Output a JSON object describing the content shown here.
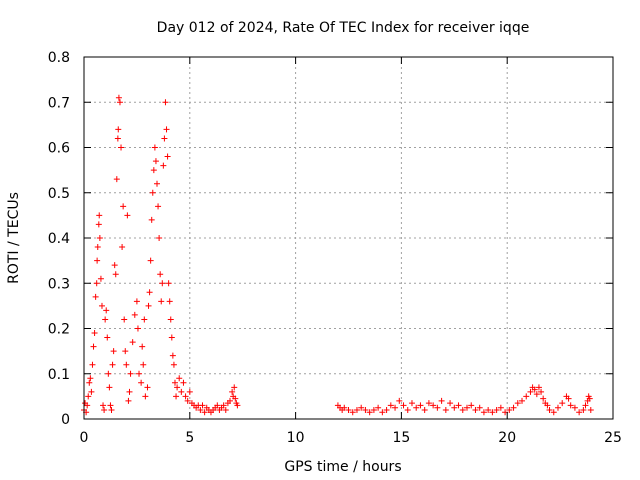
{
  "chart_data": {
    "type": "scatter",
    "title": "Day 012 of 2024, Rate Of TEC Index for receiver iqqe",
    "xlabel": "GPS time / hours",
    "ylabel": "ROTI / TECUs",
    "xlim": [
      0,
      25
    ],
    "ylim": [
      0,
      0.8
    ],
    "x_ticks": [
      0,
      5,
      10,
      15,
      20,
      25
    ],
    "y_ticks": [
      0,
      0.1,
      0.2,
      0.3,
      0.4,
      0.5,
      0.6,
      0.7,
      0.8
    ],
    "x_tick_labels": [
      "0",
      "5",
      "10",
      "15",
      "20",
      "25"
    ],
    "y_tick_labels": [
      "0",
      "0.1",
      "0.2",
      "0.3",
      "0.4",
      "0.5",
      "0.6",
      "0.7",
      "0.8"
    ],
    "grid": true,
    "marker": "+",
    "color": "#ff0000",
    "series": [
      {
        "points": [
          [
            0.0,
            0.02
          ],
          [
            0.05,
            0.035
          ],
          [
            0.1,
            0.015
          ],
          [
            0.15,
            0.03
          ],
          [
            0.2,
            0.05
          ],
          [
            0.25,
            0.08
          ],
          [
            0.3,
            0.09
          ],
          [
            0.35,
            0.06
          ],
          [
            0.4,
            0.12
          ],
          [
            0.45,
            0.16
          ],
          [
            0.5,
            0.19
          ],
          [
            0.55,
            0.27
          ],
          [
            0.6,
            0.3
          ],
          [
            0.62,
            0.35
          ],
          [
            0.65,
            0.38
          ],
          [
            0.7,
            0.43
          ],
          [
            0.72,
            0.45
          ],
          [
            0.75,
            0.4
          ],
          [
            0.8,
            0.31
          ],
          [
            0.85,
            0.25
          ],
          [
            0.9,
            0.03
          ],
          [
            0.95,
            0.02
          ],
          [
            1.0,
            0.22
          ],
          [
            1.05,
            0.24
          ],
          [
            1.1,
            0.18
          ],
          [
            1.15,
            0.1
          ],
          [
            1.2,
            0.07
          ],
          [
            1.25,
            0.03
          ],
          [
            1.3,
            0.02
          ],
          [
            1.35,
            0.12
          ],
          [
            1.4,
            0.15
          ],
          [
            1.45,
            0.34
          ],
          [
            1.5,
            0.32
          ],
          [
            1.55,
            0.53
          ],
          [
            1.6,
            0.62
          ],
          [
            1.62,
            0.64
          ],
          [
            1.65,
            0.71
          ],
          [
            1.7,
            0.7
          ],
          [
            1.75,
            0.6
          ],
          [
            1.8,
            0.38
          ],
          [
            1.85,
            0.47
          ],
          [
            1.9,
            0.22
          ],
          [
            1.95,
            0.15
          ],
          [
            2.0,
            0.12
          ],
          [
            2.05,
            0.45
          ],
          [
            2.1,
            0.04
          ],
          [
            2.15,
            0.06
          ],
          [
            2.2,
            0.1
          ],
          [
            2.3,
            0.17
          ],
          [
            2.4,
            0.23
          ],
          [
            2.5,
            0.26
          ],
          [
            2.55,
            0.2
          ],
          [
            2.6,
            0.1
          ],
          [
            2.7,
            0.08
          ],
          [
            2.75,
            0.16
          ],
          [
            2.8,
            0.12
          ],
          [
            2.85,
            0.22
          ],
          [
            2.9,
            0.05
          ],
          [
            3.0,
            0.07
          ],
          [
            3.05,
            0.25
          ],
          [
            3.1,
            0.28
          ],
          [
            3.15,
            0.35
          ],
          [
            3.2,
            0.44
          ],
          [
            3.25,
            0.5
          ],
          [
            3.3,
            0.55
          ],
          [
            3.35,
            0.6
          ],
          [
            3.4,
            0.57
          ],
          [
            3.45,
            0.52
          ],
          [
            3.5,
            0.47
          ],
          [
            3.55,
            0.4
          ],
          [
            3.6,
            0.32
          ],
          [
            3.65,
            0.26
          ],
          [
            3.7,
            0.3
          ],
          [
            3.75,
            0.56
          ],
          [
            3.8,
            0.62
          ],
          [
            3.85,
            0.7
          ],
          [
            3.9,
            0.64
          ],
          [
            3.95,
            0.58
          ],
          [
            4.0,
            0.3
          ],
          [
            4.05,
            0.26
          ],
          [
            4.1,
            0.22
          ],
          [
            4.15,
            0.18
          ],
          [
            4.2,
            0.14
          ],
          [
            4.25,
            0.12
          ],
          [
            4.3,
            0.08
          ],
          [
            4.35,
            0.05
          ],
          [
            4.4,
            0.07
          ],
          [
            4.5,
            0.09
          ],
          [
            4.6,
            0.06
          ],
          [
            4.7,
            0.08
          ],
          [
            4.8,
            0.05
          ],
          [
            4.9,
            0.04
          ],
          [
            5.0,
            0.06
          ],
          [
            5.1,
            0.035
          ],
          [
            5.2,
            0.03
          ],
          [
            5.3,
            0.025
          ],
          [
            5.4,
            0.03
          ],
          [
            5.5,
            0.02
          ],
          [
            5.6,
            0.03
          ],
          [
            5.7,
            0.015
          ],
          [
            5.8,
            0.025
          ],
          [
            5.9,
            0.02
          ],
          [
            6.0,
            0.015
          ],
          [
            6.1,
            0.02
          ],
          [
            6.2,
            0.025
          ],
          [
            6.3,
            0.03
          ],
          [
            6.4,
            0.02
          ],
          [
            6.5,
            0.025
          ],
          [
            6.6,
            0.03
          ],
          [
            6.7,
            0.02
          ],
          [
            6.8,
            0.035
          ],
          [
            6.9,
            0.04
          ],
          [
            7.0,
            0.06
          ],
          [
            7.05,
            0.05
          ],
          [
            7.1,
            0.07
          ],
          [
            7.15,
            0.045
          ],
          [
            7.2,
            0.035
          ],
          [
            7.25,
            0.03
          ],
          [
            12.0,
            0.03
          ],
          [
            12.1,
            0.025
          ],
          [
            12.2,
            0.02
          ],
          [
            12.3,
            0.025
          ],
          [
            12.5,
            0.02
          ],
          [
            12.7,
            0.015
          ],
          [
            12.9,
            0.02
          ],
          [
            13.1,
            0.025
          ],
          [
            13.3,
            0.02
          ],
          [
            13.5,
            0.015
          ],
          [
            13.7,
            0.02
          ],
          [
            13.9,
            0.025
          ],
          [
            14.1,
            0.015
          ],
          [
            14.3,
            0.02
          ],
          [
            14.5,
            0.03
          ],
          [
            14.7,
            0.025
          ],
          [
            14.9,
            0.04
          ],
          [
            15.1,
            0.03
          ],
          [
            15.3,
            0.02
          ],
          [
            15.5,
            0.035
          ],
          [
            15.7,
            0.025
          ],
          [
            15.9,
            0.03
          ],
          [
            16.1,
            0.02
          ],
          [
            16.3,
            0.035
          ],
          [
            16.5,
            0.03
          ],
          [
            16.7,
            0.025
          ],
          [
            16.9,
            0.04
          ],
          [
            17.1,
            0.02
          ],
          [
            17.3,
            0.035
          ],
          [
            17.5,
            0.025
          ],
          [
            17.7,
            0.03
          ],
          [
            17.9,
            0.02
          ],
          [
            18.1,
            0.025
          ],
          [
            18.3,
            0.03
          ],
          [
            18.5,
            0.02
          ],
          [
            18.7,
            0.025
          ],
          [
            18.9,
            0.015
          ],
          [
            19.1,
            0.02
          ],
          [
            19.3,
            0.015
          ],
          [
            19.5,
            0.02
          ],
          [
            19.7,
            0.025
          ],
          [
            19.9,
            0.015
          ],
          [
            20.1,
            0.02
          ],
          [
            20.3,
            0.025
          ],
          [
            20.5,
            0.035
          ],
          [
            20.7,
            0.04
          ],
          [
            20.9,
            0.05
          ],
          [
            21.1,
            0.06
          ],
          [
            21.2,
            0.07
          ],
          [
            21.3,
            0.065
          ],
          [
            21.4,
            0.055
          ],
          [
            21.5,
            0.07
          ],
          [
            21.6,
            0.06
          ],
          [
            21.7,
            0.045
          ],
          [
            21.8,
            0.035
          ],
          [
            21.9,
            0.03
          ],
          [
            22.0,
            0.02
          ],
          [
            22.2,
            0.015
          ],
          [
            22.4,
            0.025
          ],
          [
            22.6,
            0.035
          ],
          [
            22.8,
            0.05
          ],
          [
            22.9,
            0.045
          ],
          [
            23.0,
            0.03
          ],
          [
            23.2,
            0.025
          ],
          [
            23.4,
            0.015
          ],
          [
            23.6,
            0.02
          ],
          [
            23.7,
            0.03
          ],
          [
            23.8,
            0.04
          ],
          [
            23.85,
            0.05
          ],
          [
            23.9,
            0.045
          ],
          [
            23.95,
            0.02
          ]
        ]
      }
    ]
  }
}
